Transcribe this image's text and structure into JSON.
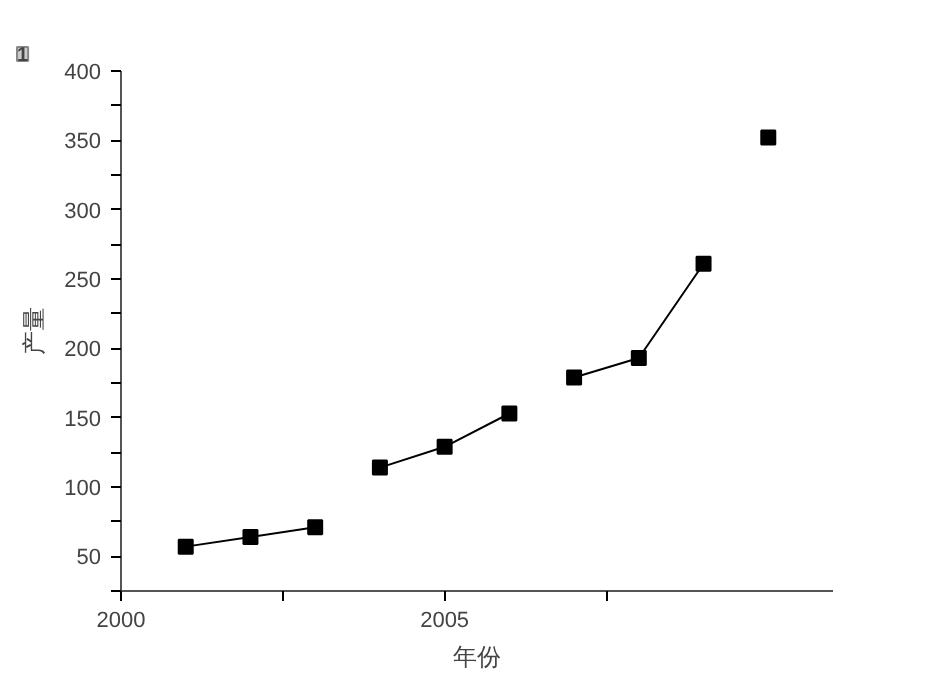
{
  "chart_data": {
    "type": "line",
    "xlabel": "年份",
    "ylabel": "产量",
    "annotations": [
      "1"
    ],
    "xlim": [
      2000,
      2011
    ],
    "ylim": [
      25,
      400
    ],
    "xticks": [
      2000,
      {
        "value": 2002.5,
        "label": null
      },
      2005,
      {
        "value": 2007.5,
        "label": null
      }
    ],
    "yticks": [
      {
        "value": 25,
        "label": null
      },
      50,
      {
        "value": 75,
        "label": null
      },
      100,
      {
        "value": 125,
        "label": null
      },
      150,
      {
        "value": 175,
        "label": null
      },
      200,
      {
        "value": 225,
        "label": null
      },
      250,
      {
        "value": 275,
        "label": null
      },
      300,
      {
        "value": 325,
        "label": null
      },
      350,
      {
        "value": 375,
        "label": null
      },
      400
    ],
    "marker": "square",
    "series": [
      {
        "color": "#000000",
        "x": [
          2001,
          2002,
          2003
        ],
        "values": [
          57,
          64,
          71
        ]
      },
      {
        "color": "#000000",
        "x": [
          2004,
          2005,
          2006
        ],
        "values": [
          114,
          129,
          153
        ]
      },
      {
        "color": "#000000",
        "x": [
          2007,
          2008,
          2009
        ],
        "values": [
          179,
          193,
          261
        ]
      },
      {
        "type": "scatter",
        "color": "#000000",
        "x": [
          2010
        ],
        "values": [
          352
        ]
      }
    ]
  }
}
